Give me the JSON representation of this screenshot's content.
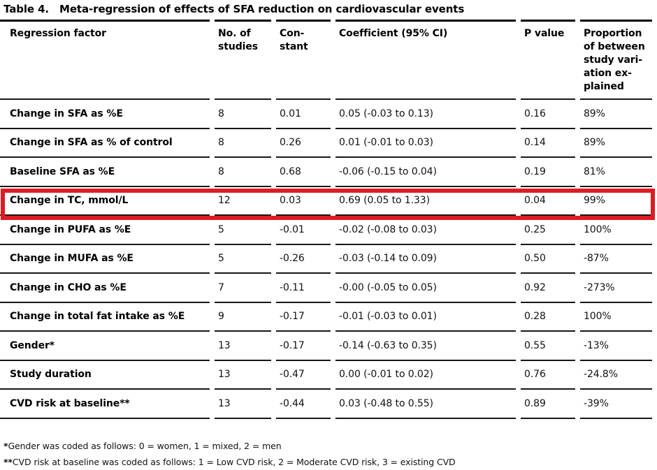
{
  "title": {
    "label": "Table 4.",
    "text": "Meta-regression of effects of SFA reduction on cardiovascular events"
  },
  "colors": {
    "highlight_box": "#dd1c23",
    "rule": "#161616",
    "text": "#000000"
  },
  "table": {
    "columns": [
      "Regression factor",
      "No. of studies",
      "Con-stant",
      "Coefficient (95% CI)",
      "P value",
      "Proportion of between study vari-ation ex-plained"
    ],
    "rows": [
      {
        "factor": "Change in SFA as %E",
        "n_studies": "8",
        "constant": "0.01",
        "coefficient": "0.05 (-0.03 to 0.13)",
        "p_value": "0.16",
        "proportion": "89%",
        "highlighted": false
      },
      {
        "factor": "Change in SFA as % of control",
        "n_studies": "8",
        "constant": "0.26",
        "coefficient": "0.01 (-0.01 to 0.03)",
        "p_value": "0.14",
        "proportion": "89%",
        "highlighted": false
      },
      {
        "factor": "Baseline SFA as %E",
        "n_studies": "8",
        "constant": "0.68",
        "coefficient": "-0.06 (-0.15 to 0.04)",
        "p_value": "0.19",
        "proportion": "81%",
        "highlighted": false
      },
      {
        "factor": "Change in TC, mmol/L",
        "n_studies": "12",
        "constant": "0.03",
        "coefficient": "0.69 (0.05 to 1.33)",
        "p_value": "0.04",
        "proportion": "99%",
        "highlighted": true
      },
      {
        "factor": "Change in PUFA as %E",
        "n_studies": "5",
        "constant": "-0.01",
        "coefficient": "-0.02 (-0.08 to 0.03)",
        "p_value": "0.25",
        "proportion": "100%",
        "highlighted": false
      },
      {
        "factor": "Change in MUFA as %E",
        "n_studies": "5",
        "constant": "-0.26",
        "coefficient": "-0.03 (-0.14 to 0.09)",
        "p_value": "0.50",
        "proportion": "-87%",
        "highlighted": false
      },
      {
        "factor": "Change in CHO as %E",
        "n_studies": "7",
        "constant": "-0.11",
        "coefficient": "-0.00 (-0.05 to 0.05)",
        "p_value": "0.92",
        "proportion": "-273%",
        "highlighted": false
      },
      {
        "factor": "Change in total fat intake as %E",
        "n_studies": "9",
        "constant": "-0.17",
        "coefficient": "-0.01 (-0.03 to 0.01)",
        "p_value": "0.28",
        "proportion": "100%",
        "highlighted": false
      },
      {
        "factor": "Gender*",
        "n_studies": "13",
        "constant": "-0.17",
        "coefficient": "-0.14 (-0.63 to 0.35)",
        "p_value": "0.55",
        "proportion": "-13%",
        "highlighted": false
      },
      {
        "factor": "Study duration",
        "n_studies": "13",
        "constant": "-0.47",
        "coefficient": "0.00 (-0.01 to 0.02)",
        "p_value": "0.76",
        "proportion": "-24.8%",
        "highlighted": false
      },
      {
        "factor": "CVD risk at baseline**",
        "n_studies": "13",
        "constant": "-0.44",
        "coefficient": "0.03 (-0.48 to 0.55)",
        "p_value": "0.89",
        "proportion": "-39%",
        "highlighted": false
      }
    ]
  },
  "footnotes": [
    {
      "marker": "*",
      "text": "Gender was coded as follows: 0 = women, 1 = mixed, 2 = men"
    },
    {
      "marker": "**",
      "text": "CVD risk at baseline was coded as follows: 1 = Low CVD risk, 2 = Moderate CVD risk, 3 = existing CVD"
    }
  ]
}
